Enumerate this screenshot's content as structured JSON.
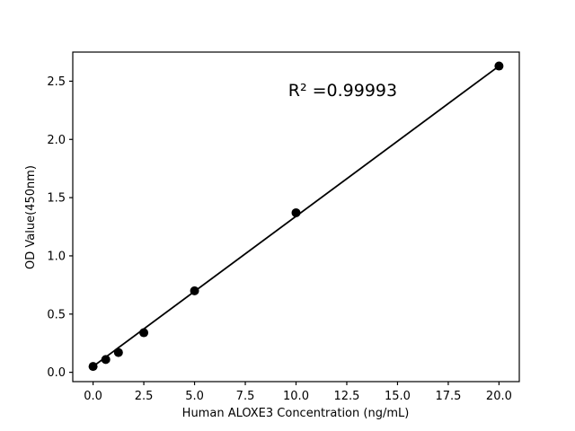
{
  "figure": {
    "background": "#ffffff",
    "foreground": "#000000"
  },
  "chart_data": {
    "type": "scatter",
    "title": "",
    "xlabel": "Human ALOXE3 Concentration (ng/mL)",
    "ylabel": "OD Value(450nm)",
    "annotation": "R² =0.99993",
    "annotation_xy": [
      12.3,
      2.42
    ],
    "x": [
      0,
      0.625,
      1.25,
      2.5,
      5,
      10,
      20
    ],
    "y": [
      0.05,
      0.11,
      0.17,
      0.34,
      0.7,
      1.37,
      2.63
    ],
    "fit_line": {
      "x": [
        0,
        20
      ],
      "y": [
        0.05,
        2.63
      ]
    },
    "xlim": [
      -1,
      21
    ],
    "ylim": [
      -0.08,
      2.75
    ],
    "x_ticks": [
      0.0,
      2.5,
      5.0,
      7.5,
      10.0,
      12.5,
      15.0,
      17.5,
      20.0
    ],
    "y_ticks": [
      0.0,
      0.5,
      1.0,
      1.5,
      2.0,
      2.5
    ],
    "tick_decimals": 1,
    "grid": false,
    "legend": null,
    "marker_color": "#000000",
    "line_color": "#000000",
    "marker_radius": 5,
    "line_width": 1.8
  }
}
